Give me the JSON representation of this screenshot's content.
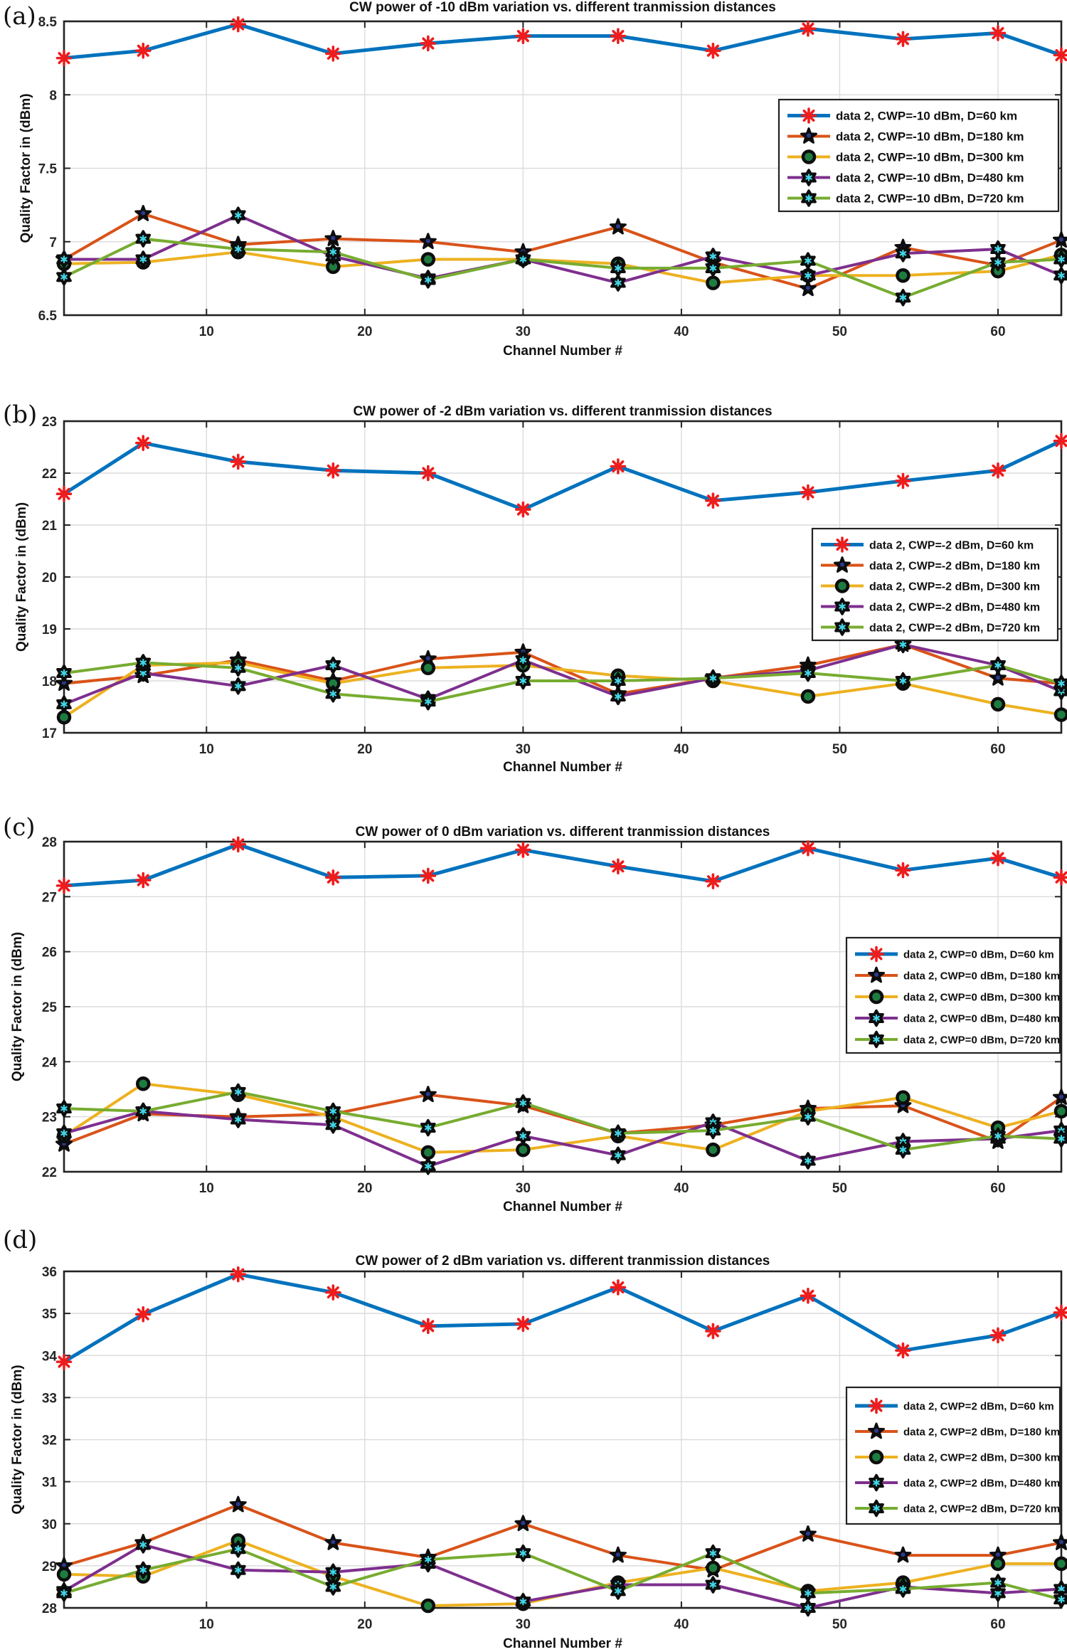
{
  "figure": {
    "ylabel": "Quality Factor in (dBm)",
    "xlabel": "Channel Number #",
    "colors": {
      "axis": "#222222",
      "grid": "#dcdcdc",
      "tick_label": "#262626",
      "series_blue": "#0072BD",
      "series_orange": "#D95319",
      "series_yellow": "#EDB120",
      "series_purple": "#7E2F8E",
      "series_green": "#77AC30",
      "marker_red": "#ee1c1c",
      "marker_black": "#0d0d0d",
      "marker_navy": "#2b3990",
      "marker_green_fill": "#1d7d40",
      "marker_cyan": "#3fd8e8"
    }
  },
  "chart_data": [
    {
      "type": "line",
      "panel_label": "(a)",
      "title": "CW power of -10 dBm variation vs. different tranmission distances",
      "xlabel": "Channel Number #",
      "ylabel": "Quality Factor in (dBm)",
      "x": [
        1,
        6,
        12,
        18,
        24,
        30,
        36,
        42,
        48,
        54,
        60,
        64
      ],
      "xlim": [
        1,
        64
      ],
      "ylim": [
        6.5,
        8.5
      ],
      "xticks": [
        10,
        20,
        30,
        40,
        50,
        60
      ],
      "yticks": [
        6.5,
        7,
        7.5,
        8,
        8.5
      ],
      "grid": true,
      "legend_position": "upper right",
      "series": [
        {
          "name": "data 2, CWP=-10 dBm, D=60 km",
          "line_color": "#0072BD",
          "line_width": 5,
          "marker": "asterisk",
          "marker_color": "#ee1c1c",
          "values": [
            8.25,
            8.3,
            8.48,
            8.28,
            8.35,
            8.4,
            8.4,
            8.3,
            8.45,
            8.38,
            8.42,
            8.27
          ]
        },
        {
          "name": "data 2, CWP=-10 dBm, D=180 km",
          "line_color": "#D95319",
          "line_width": 4,
          "marker": "pentagram",
          "marker_color": "#0d0d0d",
          "marker_accent": "#2b3990",
          "values": [
            6.88,
            7.19,
            6.98,
            7.02,
            7.0,
            6.93,
            7.1,
            6.86,
            6.68,
            6.96,
            6.84,
            7.01
          ]
        },
        {
          "name": "data 2, CWP=-10 dBm, D=300 km",
          "line_color": "#EDB120",
          "line_width": 4,
          "marker": "circle",
          "marker_color": "#1d7d40",
          "marker_edge": "#0d0d0d",
          "values": [
            6.85,
            6.86,
            6.93,
            6.83,
            6.88,
            6.88,
            6.85,
            6.72,
            6.77,
            6.77,
            6.8,
            6.91
          ]
        },
        {
          "name": "data 2, CWP=-10 dBm, D=480 km",
          "line_color": "#7E2F8E",
          "line_width": 4,
          "marker": "hexagram",
          "marker_color": "#0d0d0d",
          "marker_accent": "#3fd8e8",
          "values": [
            6.88,
            6.88,
            7.18,
            6.9,
            6.75,
            6.88,
            6.72,
            6.9,
            6.77,
            6.92,
            6.95,
            6.77
          ]
        },
        {
          "name": "data 2, CWP=-10 dBm, D=720 km",
          "line_color": "#77AC30",
          "line_width": 4,
          "marker": "hexagram",
          "marker_color": "#0d0d0d",
          "marker_accent": "#3fd8e8",
          "values": [
            6.76,
            7.02,
            6.95,
            6.93,
            6.74,
            6.88,
            6.82,
            6.82,
            6.87,
            6.62,
            6.86,
            6.88
          ]
        }
      ]
    },
    {
      "type": "line",
      "panel_label": "(b)",
      "title": "CW power of -2 dBm variation vs. different tranmission distances",
      "xlabel": "Channel Number #",
      "ylabel": "Quality Factor in (dBm)",
      "x": [
        1,
        6,
        12,
        18,
        24,
        30,
        36,
        42,
        48,
        54,
        60,
        64
      ],
      "xlim": [
        1,
        64
      ],
      "ylim": [
        17,
        23
      ],
      "xticks": [
        10,
        20,
        30,
        40,
        50,
        60
      ],
      "yticks": [
        17,
        18,
        19,
        20,
        21,
        22,
        23
      ],
      "grid": true,
      "legend_position": "right",
      "series": [
        {
          "name": "data 2, CWP=-2 dBm, D=60 km",
          "line_color": "#0072BD",
          "line_width": 5,
          "marker": "asterisk",
          "marker_color": "#ee1c1c",
          "values": [
            21.6,
            22.58,
            22.22,
            22.05,
            22.0,
            21.3,
            22.13,
            21.47,
            21.63,
            21.85,
            22.05,
            22.62
          ]
        },
        {
          "name": "data 2, CWP=-2 dBm, D=180 km",
          "line_color": "#D95319",
          "line_width": 4,
          "marker": "pentagram",
          "marker_color": "#0d0d0d",
          "marker_accent": "#2b3990",
          "values": [
            17.95,
            18.1,
            18.4,
            18.0,
            18.42,
            18.55,
            17.75,
            18.05,
            18.3,
            18.7,
            18.05,
            17.95
          ]
        },
        {
          "name": "data 2, CWP=-2 dBm, D=300 km",
          "line_color": "#EDB120",
          "line_width": 4,
          "marker": "circle",
          "marker_color": "#1d7d40",
          "marker_edge": "#0d0d0d",
          "values": [
            17.3,
            18.3,
            18.35,
            17.95,
            18.25,
            18.3,
            18.1,
            18.0,
            17.7,
            17.95,
            17.55,
            17.35
          ]
        },
        {
          "name": "data 2, CWP=-2 dBm, D=480 km",
          "line_color": "#7E2F8E",
          "line_width": 4,
          "marker": "hexagram",
          "marker_color": "#0d0d0d",
          "marker_accent": "#3fd8e8",
          "values": [
            17.55,
            18.15,
            17.9,
            18.3,
            17.65,
            18.4,
            17.7,
            18.05,
            18.2,
            18.7,
            18.3,
            17.8
          ]
        },
        {
          "name": "data 2, CWP=-2 dBm, D=720 km",
          "line_color": "#77AC30",
          "line_width": 4,
          "marker": "hexagram",
          "marker_color": "#0d0d0d",
          "marker_accent": "#3fd8e8",
          "values": [
            18.15,
            18.35,
            18.25,
            17.75,
            17.6,
            18.0,
            18.0,
            18.05,
            18.15,
            18.0,
            18.3,
            17.95
          ]
        }
      ]
    },
    {
      "type": "line",
      "panel_label": "(c)",
      "title": "CW power of 0 dBm variation vs. different tranmission distances",
      "xlabel": "Channel Number #",
      "ylabel": "Quality Factor in (dBm)",
      "x": [
        1,
        6,
        12,
        18,
        24,
        30,
        36,
        42,
        48,
        54,
        60,
        64
      ],
      "xlim": [
        1,
        64
      ],
      "ylim": [
        22,
        28
      ],
      "xticks": [
        10,
        20,
        30,
        40,
        50,
        60
      ],
      "yticks": [
        22,
        23,
        24,
        25,
        26,
        27,
        28
      ],
      "grid": true,
      "legend_position": "right",
      "series": [
        {
          "name": "data 2, CWP=0 dBm, D=60 km",
          "line_color": "#0072BD",
          "line_width": 5,
          "marker": "asterisk",
          "marker_color": "#ee1c1c",
          "values": [
            27.2,
            27.3,
            27.95,
            27.35,
            27.38,
            27.85,
            27.55,
            27.28,
            27.88,
            27.48,
            27.7,
            27.35
          ]
        },
        {
          "name": "data 2, CWP=0 dBm, D=180 km",
          "line_color": "#D95319",
          "line_width": 4,
          "marker": "pentagram",
          "marker_color": "#0d0d0d",
          "marker_accent": "#2b3990",
          "values": [
            22.5,
            23.05,
            23.0,
            23.05,
            23.4,
            23.2,
            22.7,
            22.85,
            23.15,
            23.2,
            22.55,
            23.35
          ]
        },
        {
          "name": "data 2, CWP=0 dBm, D=300 km",
          "line_color": "#EDB120",
          "line_width": 4,
          "marker": "circle",
          "marker_color": "#1d7d40",
          "marker_edge": "#0d0d0d",
          "values": [
            22.65,
            23.6,
            23.4,
            23.0,
            22.35,
            22.4,
            22.65,
            22.4,
            23.1,
            23.35,
            22.8,
            23.1
          ]
        },
        {
          "name": "data 2, CWP=0 dBm, D=480 km",
          "line_color": "#7E2F8E",
          "line_width": 4,
          "marker": "hexagram",
          "marker_color": "#0d0d0d",
          "marker_accent": "#3fd8e8",
          "values": [
            22.7,
            23.1,
            22.95,
            22.85,
            22.1,
            22.65,
            22.3,
            22.9,
            22.2,
            22.55,
            22.6,
            22.75
          ]
        },
        {
          "name": "data 2, CWP=0 dBm, D=720 km",
          "line_color": "#77AC30",
          "line_width": 4,
          "marker": "hexagram",
          "marker_color": "#0d0d0d",
          "marker_accent": "#3fd8e8",
          "values": [
            23.15,
            23.1,
            23.45,
            23.1,
            22.8,
            23.25,
            22.7,
            22.75,
            23.0,
            22.4,
            22.65,
            22.6
          ]
        }
      ]
    },
    {
      "type": "line",
      "panel_label": "(d)",
      "title": "CW power of 2 dBm variation vs. different tranmission distances",
      "xlabel": "Channel Number #",
      "ylabel": "Quality Factor in (dBm)",
      "x": [
        1,
        6,
        12,
        18,
        24,
        30,
        36,
        42,
        48,
        54,
        60,
        64
      ],
      "xlim": [
        1,
        64
      ],
      "ylim": [
        28,
        36
      ],
      "xticks": [
        10,
        20,
        30,
        40,
        50,
        60
      ],
      "yticks": [
        28,
        29,
        30,
        31,
        32,
        33,
        34,
        35,
        36
      ],
      "grid": true,
      "legend_position": "right",
      "series": [
        {
          "name": "data 2, CWP=2 dBm, D=60 km",
          "line_color": "#0072BD",
          "line_width": 5,
          "marker": "asterisk",
          "marker_color": "#ee1c1c",
          "values": [
            33.85,
            34.98,
            35.93,
            35.5,
            34.7,
            34.75,
            35.62,
            34.58,
            35.42,
            34.12,
            34.48,
            35.02
          ]
        },
        {
          "name": "data 2, CWP=2 dBm, D=180 km",
          "line_color": "#D95319",
          "line_width": 4,
          "marker": "pentagram",
          "marker_color": "#0d0d0d",
          "marker_accent": "#2b3990",
          "values": [
            29.0,
            29.55,
            30.45,
            29.55,
            29.2,
            30.0,
            29.25,
            28.9,
            29.75,
            29.25,
            29.25,
            29.55
          ]
        },
        {
          "name": "data 2, CWP=2 dBm, D=300 km",
          "line_color": "#EDB120",
          "line_width": 4,
          "marker": "circle",
          "marker_color": "#1d7d40",
          "marker_edge": "#0d0d0d",
          "values": [
            28.8,
            28.75,
            29.6,
            28.75,
            28.05,
            28.1,
            28.6,
            28.95,
            28.4,
            28.6,
            29.05,
            29.05
          ]
        },
        {
          "name": "data 2, CWP=2 dBm, D=480 km",
          "line_color": "#7E2F8E",
          "line_width": 4,
          "marker": "hexagram",
          "marker_color": "#0d0d0d",
          "marker_accent": "#3fd8e8",
          "values": [
            28.4,
            29.5,
            28.9,
            28.85,
            29.05,
            28.15,
            28.55,
            28.55,
            28.0,
            28.5,
            28.35,
            28.45
          ]
        },
        {
          "name": "data 2, CWP=2 dBm, D=720 km",
          "line_color": "#77AC30",
          "line_width": 4,
          "marker": "hexagram",
          "marker_color": "#0d0d0d",
          "marker_accent": "#3fd8e8",
          "values": [
            28.35,
            28.9,
            29.4,
            28.5,
            29.15,
            29.3,
            28.4,
            29.3,
            28.35,
            28.45,
            28.6,
            28.2
          ]
        }
      ]
    }
  ]
}
